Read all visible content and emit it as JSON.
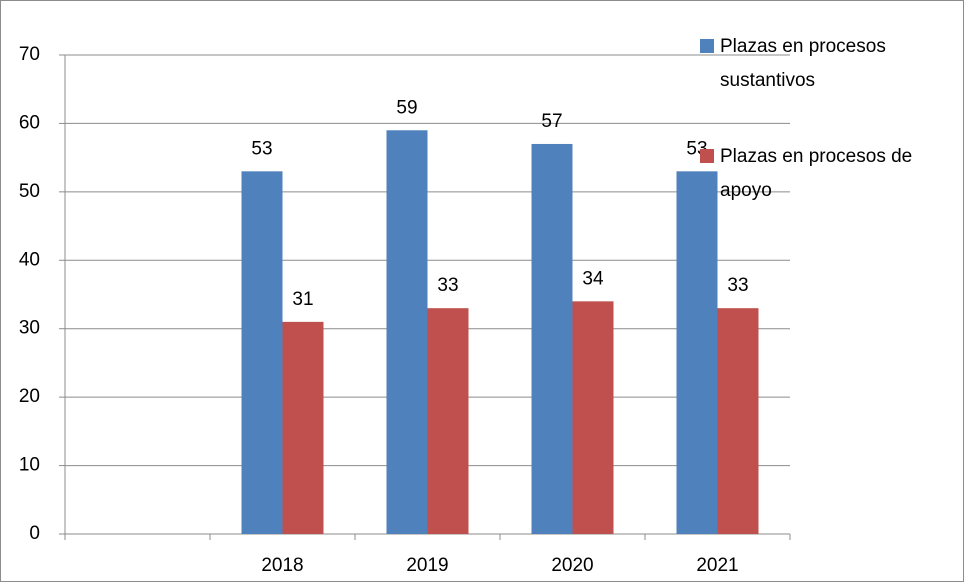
{
  "chart_data": {
    "type": "bar",
    "categories": [
      null,
      "2018",
      "2019",
      "2020",
      "2021"
    ],
    "series": [
      {
        "name": "Plazas en procesos sustantivos",
        "color": "#4f81bd",
        "values": [
          null,
          53,
          59,
          57,
          53
        ]
      },
      {
        "name": "Plazas en procesos de apoyo",
        "color": "#c0504d",
        "values": [
          null,
          31,
          33,
          34,
          33
        ]
      }
    ],
    "ylim": [
      0,
      70
    ],
    "yticks": [
      0,
      10,
      20,
      30,
      40,
      50,
      60,
      70
    ],
    "grid": true,
    "legend": "top-right"
  }
}
